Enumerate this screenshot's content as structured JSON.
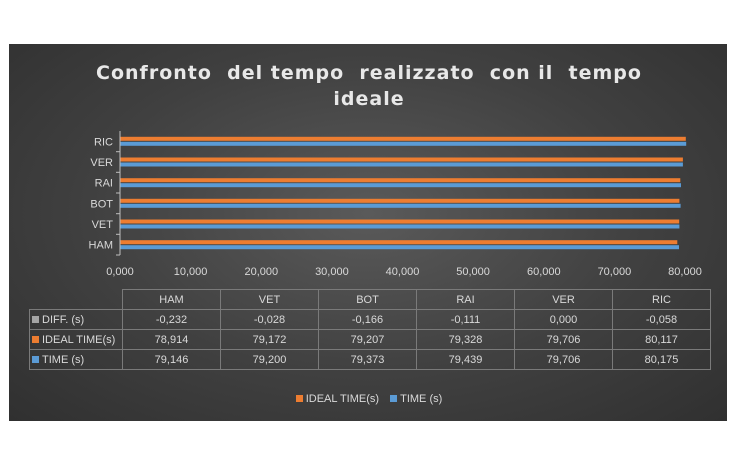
{
  "colors": {
    "ideal": "#ED7D31",
    "time": "#5B9BD5",
    "diff": "#A5A5A5",
    "axis": "#bfbfbf",
    "text": "#d9d9d9"
  },
  "chart_data": {
    "type": "bar",
    "orientation": "horizontal",
    "title_line1": "Confronto  del tempo  realizzato  con il  tempo",
    "title_line2": "ideale",
    "categories": [
      "HAM",
      "VET",
      "BOT",
      "RAI",
      "VER",
      "RIC"
    ],
    "series": [
      {
        "name": "DIFF. (s)",
        "values": [
          -0.232,
          -0.028,
          -0.166,
          -0.111,
          0.0,
          -0.058
        ],
        "labels": [
          "-0,232",
          "-0,028",
          "-0,166",
          "-0,111",
          "0,000",
          "-0,058"
        ]
      },
      {
        "name": "IDEAL TIME(s)",
        "values": [
          78.914,
          79.172,
          79.207,
          79.328,
          79.706,
          80.117
        ],
        "labels": [
          "78,914",
          "79,172",
          "79,207",
          "79,328",
          "79,706",
          "80,117"
        ]
      },
      {
        "name": "TIME (s)",
        "values": [
          79.146,
          79.2,
          79.373,
          79.439,
          79.706,
          80.175
        ],
        "labels": [
          "79,146",
          "79,200",
          "79,373",
          "79,439",
          "79,706",
          "80,175"
        ]
      }
    ],
    "xlim": [
      0,
      80
    ],
    "xticks": [
      0,
      10,
      20,
      30,
      40,
      50,
      60,
      70,
      80
    ],
    "xtick_labels": [
      "0,000",
      "10,000",
      "20,000",
      "30,000",
      "40,000",
      "50,000",
      "60,000",
      "70,000",
      "80,000"
    ],
    "legend": [
      "IDEAL TIME(s)",
      "TIME (s)"
    ],
    "legend_position": "bottom",
    "grid": false
  }
}
